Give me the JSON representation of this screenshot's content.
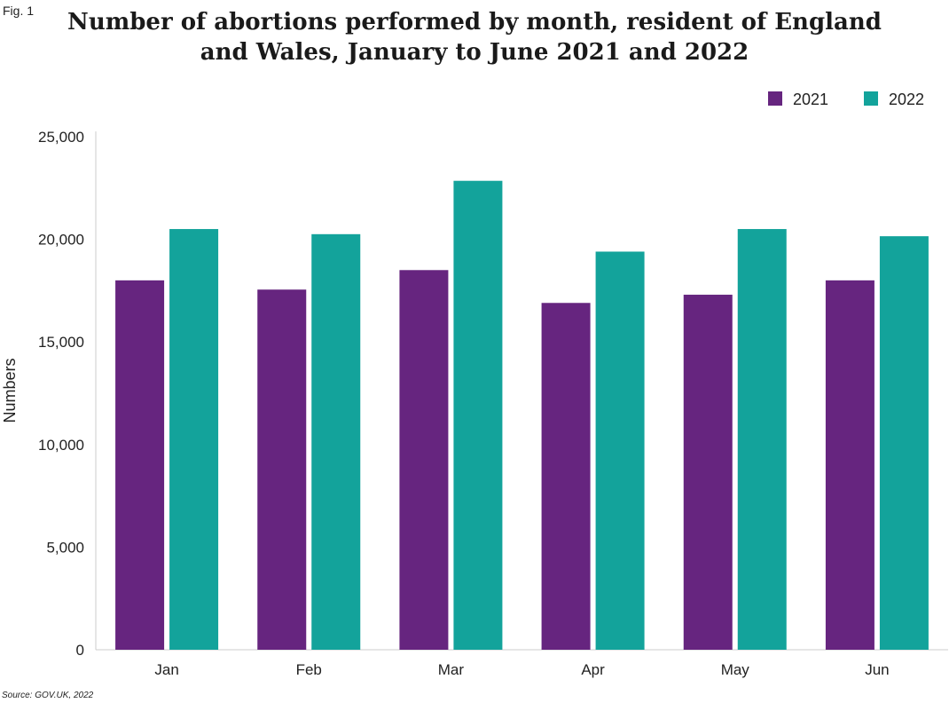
{
  "figure_label": "Fig. 1",
  "source": "Source: GOV.UK, 2022",
  "colors": {
    "2021": "#66257f",
    "2022": "#13a39b"
  },
  "chart_data": {
    "type": "bar",
    "title_line1": "Number of abortions performed by month, resident of England",
    "title_line2": "and Wales, January to June 2021 and 2022",
    "xlabel": "",
    "ylabel": "Numbers",
    "categories": [
      "Jan",
      "Feb",
      "Mar",
      "Apr",
      "May",
      "Jun"
    ],
    "series": [
      {
        "name": "2021",
        "values": [
          18000,
          17550,
          18500,
          16900,
          17300,
          18000
        ]
      },
      {
        "name": "2022",
        "values": [
          20500,
          20250,
          22850,
          19400,
          20500,
          20150
        ]
      }
    ],
    "ylim": [
      0,
      25000
    ],
    "yticks": [
      0,
      5000,
      10000,
      15000,
      20000,
      25000
    ],
    "ytick_labels": [
      "0",
      "5,000",
      "10,000",
      "15,000",
      "20,000",
      "25,000"
    ],
    "grid": false,
    "legend_position": "top-right"
  }
}
